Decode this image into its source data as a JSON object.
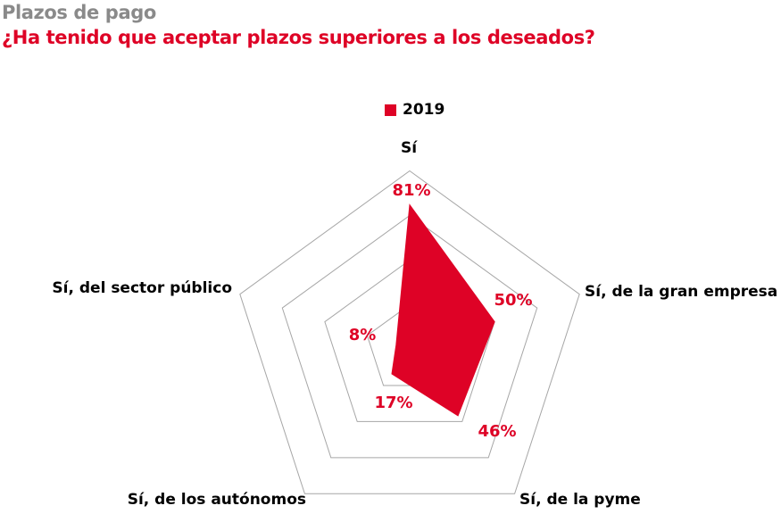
{
  "page": {
    "kicker": "Plazos de pago",
    "title": "¿Ha tenido que aceptar plazos superiores a los deseados?"
  },
  "colors": {
    "accent_red": "#de0226",
    "kicker_gray": "#8a8a8a",
    "grid_gray": "#a6a6a6",
    "label_black": "#000000",
    "background": "#ffffff"
  },
  "legend": {
    "items": [
      {
        "label": "2019",
        "color": "#de0226"
      }
    ]
  },
  "chart_data": {
    "type": "radar",
    "grid_shape": "pentagon",
    "categories": [
      "Sí",
      "Sí, de la gran empresa",
      "Sí, de la pyme",
      "Sí, de los autónomos",
      "Sí, del sector público"
    ],
    "series": [
      {
        "name": "2019",
        "color": "#de0226",
        "values": [
          81,
          50,
          46,
          17,
          8
        ]
      }
    ],
    "value_labels": [
      "81%",
      "50%",
      "46%",
      "17%",
      "8%"
    ],
    "rings_percent": [
      25,
      50,
      75,
      100
    ],
    "max": 100,
    "grid": true,
    "spokes": false,
    "legend_position": "top-center"
  }
}
